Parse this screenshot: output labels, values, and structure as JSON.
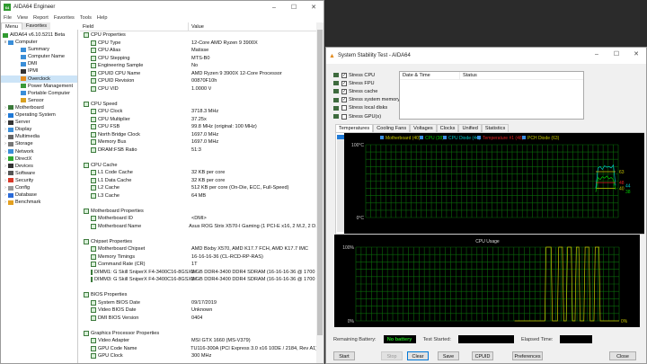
{
  "main": {
    "title": "AIDA64 Engineer",
    "menu": [
      "File",
      "View",
      "Report",
      "Favorites",
      "Tools",
      "Help"
    ],
    "tabs": [
      "Menu",
      "Favorites"
    ],
    "tree": [
      {
        "label": "AIDA64 v6.10.5211 Beta",
        "level": 0,
        "arrow": "",
        "color": "#2f9a2f"
      },
      {
        "label": "Computer",
        "level": 0,
        "arrow": "v",
        "color": "#3a8ed8"
      },
      {
        "label": "Summary",
        "level": 1,
        "arrow": "",
        "color": "#3a8ed8"
      },
      {
        "label": "Computer Name",
        "level": 1,
        "arrow": "",
        "color": "#3a8ed8"
      },
      {
        "label": "DMI",
        "level": 1,
        "arrow": "",
        "color": "#3a8ed8"
      },
      {
        "label": "IPMI",
        "level": 1,
        "arrow": "",
        "color": "#333"
      },
      {
        "label": "Overclock",
        "level": 1,
        "arrow": "",
        "color": "#e38b1e",
        "selected": true
      },
      {
        "label": "Power Management",
        "level": 1,
        "arrow": "",
        "color": "#3a9a3a"
      },
      {
        "label": "Portable Computer",
        "level": 1,
        "arrow": "",
        "color": "#3a8ed8"
      },
      {
        "label": "Sensor",
        "level": 1,
        "arrow": "",
        "color": "#d8a020"
      },
      {
        "label": "Motherboard",
        "level": 0,
        "arrow": ">",
        "color": "#3a7a3a"
      },
      {
        "label": "Operating System",
        "level": 0,
        "arrow": ">",
        "color": "#1e78d6"
      },
      {
        "label": "Server",
        "level": 0,
        "arrow": ">",
        "color": "#333"
      },
      {
        "label": "Display",
        "level": 0,
        "arrow": ">",
        "color": "#3a8ed8"
      },
      {
        "label": "Multimedia",
        "level": 0,
        "arrow": ">",
        "color": "#666"
      },
      {
        "label": "Storage",
        "level": 0,
        "arrow": ">",
        "color": "#777"
      },
      {
        "label": "Network",
        "level": 0,
        "arrow": ">",
        "color": "#3a8ed8"
      },
      {
        "label": "DirectX",
        "level": 0,
        "arrow": ">",
        "color": "#2fa82f"
      },
      {
        "label": "Devices",
        "level": 0,
        "arrow": ">",
        "color": "#333"
      },
      {
        "label": "Software",
        "level": 0,
        "arrow": ">",
        "color": "#555"
      },
      {
        "label": "Security",
        "level": 0,
        "arrow": ">",
        "color": "#d83a2a"
      },
      {
        "label": "Config",
        "level": 0,
        "arrow": ">",
        "color": "#999"
      },
      {
        "label": "Database",
        "level": 0,
        "arrow": ">",
        "color": "#2a6ad8"
      },
      {
        "label": "Benchmark",
        "level": 0,
        "arrow": ">",
        "color": "#e3a020"
      }
    ],
    "columns": [
      "Field",
      "Value"
    ],
    "rows": [
      {
        "f": "CPU Properties",
        "v": "",
        "g": 1
      },
      {
        "f": "CPU Type",
        "v": "12-Core AMD Ryzen 9 3900X"
      },
      {
        "f": "CPU Alias",
        "v": "Matisse"
      },
      {
        "f": "CPU Stepping",
        "v": "MTS-B0"
      },
      {
        "f": "Engineering Sample",
        "v": "No"
      },
      {
        "f": "CPUID CPU Name",
        "v": "AMD Ryzen 9 3900X 12-Core Processor"
      },
      {
        "f": "CPUID Revision",
        "v": "00870F10h"
      },
      {
        "f": "CPU VID",
        "v": "1.0000 V"
      },
      {
        "f": "",
        "v": "",
        "blank": 1
      },
      {
        "f": "CPU Speed",
        "v": "",
        "g": 1
      },
      {
        "f": "CPU Clock",
        "v": "3718.3 MHz"
      },
      {
        "f": "CPU Multiplier",
        "v": "37.25x"
      },
      {
        "f": "CPU FSB",
        "v": "99.8 MHz  (original: 100 MHz)"
      },
      {
        "f": "North Bridge Clock",
        "v": "1697.0 MHz"
      },
      {
        "f": "Memory Bus",
        "v": "1697.0 MHz"
      },
      {
        "f": "DRAM:FSB Ratio",
        "v": "51:3"
      },
      {
        "f": "",
        "v": "",
        "blank": 1
      },
      {
        "f": "CPU Cache",
        "v": "",
        "g": 1
      },
      {
        "f": "L1 Code Cache",
        "v": "32 KB per core"
      },
      {
        "f": "L1 Data Cache",
        "v": "32 KB per core"
      },
      {
        "f": "L2 Cache",
        "v": "512 KB per core  (On-Die, ECC, Full-Speed)"
      },
      {
        "f": "L3 Cache",
        "v": "64 MB"
      },
      {
        "f": "",
        "v": "",
        "blank": 1
      },
      {
        "f": "Motherboard Properties",
        "v": "",
        "g": 1
      },
      {
        "f": "Motherboard ID",
        "v": "<DMI>"
      },
      {
        "f": "Motherboard Name",
        "v": "Asus ROG Strix X570-I Gaming  (1 PCI-E x16, 2 M.2, 2 D..."
      },
      {
        "f": "",
        "v": "",
        "blank": 1
      },
      {
        "f": "Chipset Properties",
        "v": "",
        "g": 1
      },
      {
        "f": "Motherboard Chipset",
        "v": "AMD Bixby X570, AMD K17.7 FCH, AMD K17.7 IMC"
      },
      {
        "f": "Memory Timings",
        "v": "16-16-16-36  (CL-RCD-RP-RAS)"
      },
      {
        "f": "Command Rate (CR)",
        "v": "1T"
      },
      {
        "f": "DIMM1: G Skill SniperX F4-3400C16-8GSXW",
        "v": "8 GB DDR4-3400 DDR4 SDRAM  (16-16-16-36 @ 1700 M..."
      },
      {
        "f": "DIMM3: G Skill SniperX F4-3400C16-8GSXW",
        "v": "8 GB DDR4-3400 DDR4 SDRAM  (16-16-16-36 @ 1700 M..."
      },
      {
        "f": "",
        "v": "",
        "blank": 1
      },
      {
        "f": "BIOS Properties",
        "v": "",
        "g": 1
      },
      {
        "f": "System BIOS Date",
        "v": "09/17/2019"
      },
      {
        "f": "Video BIOS Date",
        "v": "Unknown"
      },
      {
        "f": "DMI BIOS Version",
        "v": "0404"
      },
      {
        "f": "",
        "v": "",
        "blank": 1
      },
      {
        "f": "Graphics Processor Properties",
        "v": "",
        "g": 1
      },
      {
        "f": "Video Adapter",
        "v": "MSI GTX 1660 (MS-V379)"
      },
      {
        "f": "GPU Code Name",
        "v": "TU116-300A  (PCI Express 3.0 x16 10DE / 2184, Rev A1)"
      },
      {
        "f": "GPU Clock",
        "v": "300 MHz"
      }
    ]
  },
  "sst": {
    "title": "System Stability Test - AIDA64",
    "stress": [
      {
        "label": "Stress CPU",
        "checked": true
      },
      {
        "label": "Stress FPU",
        "checked": true
      },
      {
        "label": "Stress cache",
        "checked": true
      },
      {
        "label": "Stress system memory",
        "checked": true
      },
      {
        "label": "Stress local disks",
        "checked": false
      },
      {
        "label": "Stress GPU(s)",
        "checked": false
      }
    ],
    "log_columns": [
      "Date & Time",
      "Status"
    ],
    "tabs": [
      "Temperatures",
      "Cooling Fans",
      "Voltages",
      "Clocks",
      "Unified",
      "Statistics"
    ],
    "battery_label": "Remaining Battery:",
    "battery_value": "No battery",
    "started_label": "Test Started:",
    "elapsed_label": "Elapsed Time:",
    "buttons": [
      "Start",
      "Stop",
      "Clear",
      "Save",
      "CPUID",
      "Preferences",
      "Close"
    ]
  },
  "chart_data": [
    {
      "type": "line",
      "title": "",
      "ylim": [
        0,
        100
      ],
      "ytick_labels": [
        "100°C",
        "0°C"
      ],
      "series": [
        {
          "name": "Motherboard (40)",
          "color": "#c8c800",
          "current": 40,
          "values": [
            40,
            40,
            40,
            40,
            40,
            40,
            40,
            40,
            40,
            40
          ]
        },
        {
          "name": "CPU (38)",
          "color": "#00c800",
          "current": 38,
          "values": [
            35,
            55,
            52,
            56,
            54,
            57,
            53,
            55,
            52,
            38
          ]
        },
        {
          "name": "CPU Diode (44)",
          "color": "#00c8c8",
          "current": 44,
          "values": [
            40,
            68,
            70,
            66,
            71,
            69,
            70,
            68,
            72,
            44
          ]
        },
        {
          "name": "Temperature #1 (48)",
          "color": "#e02020",
          "current": 48,
          "values": [
            48,
            48,
            48,
            48,
            48,
            48,
            48,
            48,
            48,
            48
          ]
        },
        {
          "name": "PCH Diode (63)",
          "color": "#c8c800",
          "current": 63,
          "values": [
            63,
            63,
            63,
            63,
            63,
            63,
            63,
            63,
            63,
            63
          ]
        }
      ],
      "value_labels": [
        "63",
        "48",
        "44",
        "40",
        "38"
      ]
    },
    {
      "type": "line",
      "title": "CPU Usage",
      "ylim": [
        0,
        100
      ],
      "ytick_labels": [
        "100%",
        "0%"
      ],
      "current_label": "0%",
      "series": [
        {
          "color": "#c8c800",
          "values": [
            0,
            0,
            0,
            0,
            0,
            0,
            0,
            0,
            0,
            0,
            0,
            0,
            0,
            0,
            0,
            0,
            0,
            0,
            0,
            0,
            0,
            0,
            0,
            0,
            0,
            0,
            0,
            0,
            0,
            0,
            0,
            0,
            0,
            0,
            0,
            0,
            0,
            0,
            0,
            0,
            0,
            0,
            0,
            0,
            0,
            0,
            0,
            0,
            0,
            0,
            0,
            0,
            0,
            0,
            0,
            0,
            0,
            0,
            0,
            0,
            0,
            0,
            0,
            0,
            0,
            0,
            0,
            0,
            0,
            0,
            0,
            0,
            0,
            0,
            0,
            0,
            0,
            0,
            0,
            0,
            0,
            0,
            0,
            0,
            0,
            0,
            0,
            0,
            0,
            0,
            0,
            0,
            0,
            0,
            0,
            0,
            0,
            0,
            0,
            0,
            0,
            0,
            0,
            0,
            0,
            0,
            0,
            0,
            0,
            0,
            0,
            0,
            0,
            0,
            0,
            0,
            0,
            0,
            0,
            0,
            0,
            0,
            0,
            0,
            0,
            0,
            0,
            0,
            0,
            0,
            0,
            0,
            0,
            0,
            0,
            0,
            0,
            0,
            0,
            0,
            0,
            0,
            0,
            0,
            0,
            0,
            0,
            0,
            0,
            0,
            0,
            100,
            100,
            100,
            100,
            100,
            0,
            0,
            0,
            0,
            0,
            100,
            100,
            100,
            100,
            0,
            0,
            0,
            100,
            100,
            100,
            100,
            0,
            0,
            0,
            100,
            100,
            100,
            0,
            0,
            0,
            0,
            100,
            100,
            100,
            100,
            0,
            0,
            0,
            0,
            100,
            100,
            100,
            100,
            0,
            0,
            0,
            0,
            0,
            0,
            0,
            0,
            0,
            0,
            0,
            0,
            0,
            0,
            0,
            0
          ]
        }
      ]
    }
  ]
}
